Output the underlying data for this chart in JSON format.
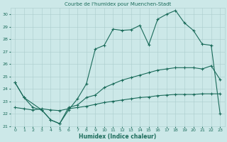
{
  "title": "Courbe de l'humidex pour Muenchen-Stadt",
  "xlabel": "Humidex (Indice chaleur)",
  "xlim": [
    -0.5,
    23.5
  ],
  "ylim": [
    21,
    30.5
  ],
  "yticks": [
    21,
    22,
    23,
    24,
    25,
    26,
    27,
    28,
    29,
    30
  ],
  "xticks": [
    0,
    1,
    2,
    3,
    4,
    5,
    6,
    7,
    8,
    9,
    10,
    11,
    12,
    13,
    14,
    15,
    16,
    17,
    18,
    19,
    20,
    21,
    22,
    23
  ],
  "bg_color": "#cce8e8",
  "grid_color": "#aacccc",
  "line_color": "#1a6b5a",
  "curve1_x": [
    0,
    1,
    2,
    3,
    4,
    5,
    6,
    7,
    8,
    9,
    10,
    11,
    12,
    13,
    14,
    15,
    16,
    17,
    18,
    19,
    20,
    21,
    22,
    23
  ],
  "curve1_y": [
    24.5,
    23.3,
    22.5,
    22.3,
    21.5,
    21.2,
    22.3,
    23.2,
    24.4,
    27.2,
    27.5,
    28.8,
    28.7,
    28.75,
    29.1,
    27.55,
    29.6,
    30.0,
    30.3,
    29.3,
    28.7,
    27.6,
    27.5,
    22.0
  ],
  "curve2_x": [
    0,
    1,
    3,
    4,
    5,
    6,
    7,
    8,
    9,
    10,
    11,
    12,
    13,
    14,
    15,
    16,
    17,
    18,
    19,
    20,
    21,
    22,
    23
  ],
  "curve2_y": [
    24.5,
    23.3,
    22.3,
    21.5,
    21.2,
    22.5,
    22.7,
    23.3,
    23.5,
    24.1,
    24.4,
    24.7,
    24.9,
    25.1,
    25.3,
    25.5,
    25.6,
    25.7,
    25.7,
    25.7,
    25.6,
    25.85,
    24.75
  ],
  "curve3_x": [
    0,
    1,
    2,
    3,
    4,
    5,
    6,
    7,
    8,
    9,
    10,
    11,
    12,
    13,
    14,
    15,
    16,
    17,
    18,
    19,
    20,
    21,
    22,
    23
  ],
  "curve3_y": [
    22.5,
    22.4,
    22.3,
    22.4,
    22.3,
    22.25,
    22.4,
    22.5,
    22.6,
    22.75,
    22.9,
    23.0,
    23.1,
    23.2,
    23.3,
    23.35,
    23.45,
    23.5,
    23.55,
    23.55,
    23.55,
    23.6,
    23.6,
    23.6
  ]
}
